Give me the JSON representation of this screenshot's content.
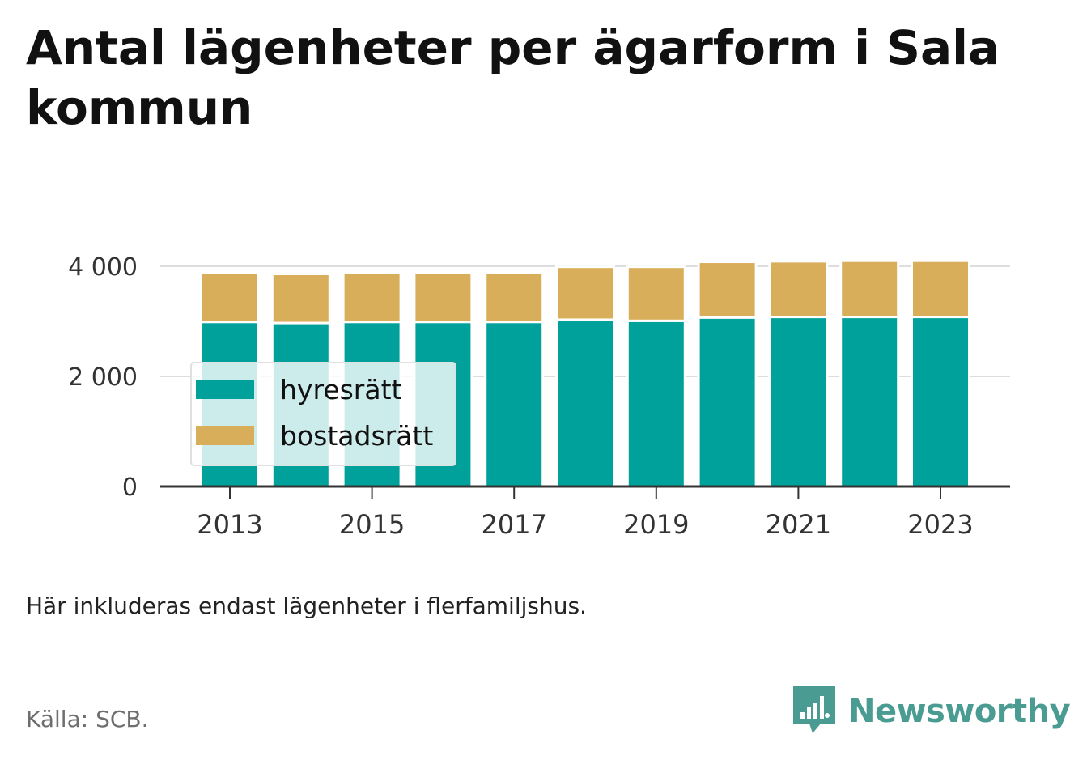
{
  "title": "Antal lägenheter per ägarform i Sala kommun",
  "note": "Här inkluderas endast lägenheter i flerfamiljshus.",
  "source": "Källa: SCB.",
  "brand": {
    "name": "Newsworthy",
    "icon": "newsworthy-logo-icon"
  },
  "colors": {
    "hyresratt": "#00a19a",
    "bostadsratt": "#d9ae5b",
    "grid": "#dddddd",
    "axis": "#333333"
  },
  "chart_data": {
    "type": "bar",
    "stacked": true,
    "x": [
      2013,
      2014,
      2015,
      2016,
      2017,
      2018,
      2019,
      2020,
      2021,
      2022,
      2023
    ],
    "xticks": [
      "2013",
      "2015",
      "2017",
      "2019",
      "2021",
      "2023"
    ],
    "yticks": [
      "0",
      "2 000",
      "4 000"
    ],
    "ytick_values": [
      0,
      2000,
      4000
    ],
    "ylim": [
      0,
      4000
    ],
    "grid": true,
    "legend_position": "bottom-left (inside plot)",
    "series": [
      {
        "name": "hyresrätt",
        "color": "#00a19a",
        "values": [
          2990,
          2970,
          2990,
          2990,
          2990,
          3030,
          3010,
          3070,
          3080,
          3080,
          3080
        ]
      },
      {
        "name": "bostadsrätt",
        "color": "#d9ae5b",
        "values": [
          890,
          890,
          900,
          900,
          890,
          960,
          980,
          1010,
          1010,
          1020,
          1020
        ]
      }
    ]
  }
}
